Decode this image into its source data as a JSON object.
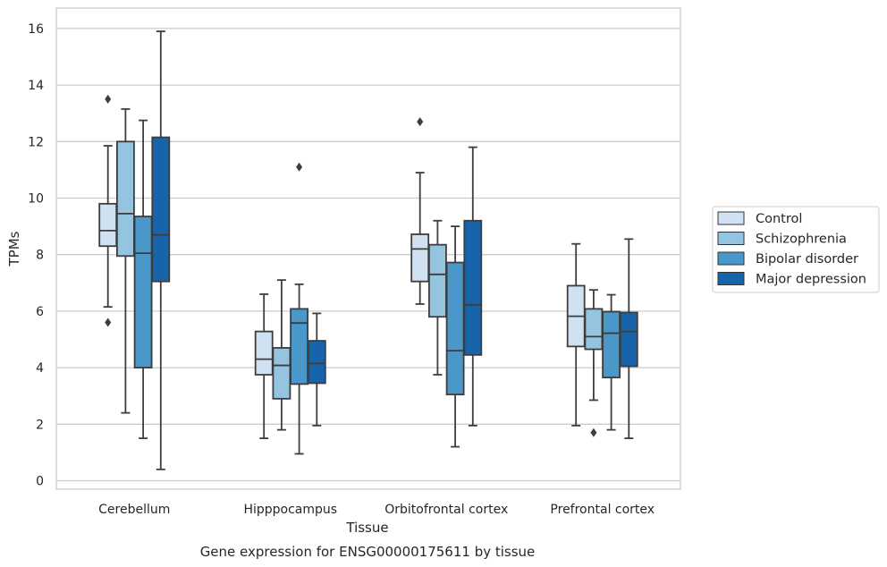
{
  "chart_data": {
    "type": "box",
    "xlabel": "Tissue",
    "ylabel": "TPMs",
    "caption": "Gene expression for ENSG00000175611 by tissue",
    "ylim": [
      -0.2,
      16.7
    ],
    "yticks": [
      0,
      2,
      4,
      6,
      8,
      10,
      12,
      14,
      16
    ],
    "grid": "horizontal",
    "legend_position": "outside-right",
    "categories": [
      "Cerebellum",
      "Hipppocampus",
      "Orbitofrontal cortex",
      "Prefrontal cortex"
    ],
    "series": [
      {
        "name": "Control",
        "color": "#d0e1f2",
        "boxes": [
          {
            "whislo": 6.15,
            "q1": 8.3,
            "med": 8.85,
            "q3": 9.8,
            "whishi": 11.85,
            "fliers": [
              13.5,
              5.6
            ]
          },
          {
            "whislo": 1.5,
            "q1": 3.75,
            "med": 4.3,
            "q3": 5.28,
            "whishi": 6.6,
            "fliers": []
          },
          {
            "whislo": 6.25,
            "q1": 7.05,
            "med": 8.2,
            "q3": 8.72,
            "whishi": 10.9,
            "fliers": [
              12.7
            ]
          },
          {
            "whislo": 1.95,
            "q1": 4.75,
            "med": 5.82,
            "q3": 6.9,
            "whishi": 8.38,
            "fliers": []
          }
        ]
      },
      {
        "name": "Schizophrenia",
        "color": "#94c4df",
        "boxes": [
          {
            "whislo": 2.4,
            "q1": 7.95,
            "med": 9.45,
            "q3": 12.0,
            "whishi": 13.15,
            "fliers": []
          },
          {
            "whislo": 1.8,
            "q1": 2.9,
            "med": 4.08,
            "q3": 4.7,
            "whishi": 7.1,
            "fliers": []
          },
          {
            "whislo": 3.75,
            "q1": 5.8,
            "med": 7.3,
            "q3": 8.35,
            "whishi": 9.2,
            "fliers": []
          },
          {
            "whislo": 2.85,
            "q1": 4.65,
            "med": 5.1,
            "q3": 6.08,
            "whishi": 6.75,
            "fliers": [
              1.7
            ]
          }
        ]
      },
      {
        "name": "Bipolar disorder",
        "color": "#4a98c9",
        "boxes": [
          {
            "whislo": 1.5,
            "q1": 4.0,
            "med": 8.05,
            "q3": 9.35,
            "whishi": 12.75,
            "fliers": []
          },
          {
            "whislo": 0.95,
            "q1": 3.42,
            "med": 5.58,
            "q3": 6.08,
            "whishi": 6.95,
            "fliers": [
              11.1
            ]
          },
          {
            "whislo": 1.2,
            "q1": 3.05,
            "med": 4.6,
            "q3": 7.72,
            "whishi": 9.0,
            "fliers": []
          },
          {
            "whislo": 1.8,
            "q1": 3.65,
            "med": 5.22,
            "q3": 5.98,
            "whishi": 6.58,
            "fliers": []
          }
        ]
      },
      {
        "name": "Major depression",
        "color": "#1764ab",
        "boxes": [
          {
            "whislo": 0.4,
            "q1": 7.05,
            "med": 8.7,
            "q3": 12.15,
            "whishi": 15.9,
            "fliers": []
          },
          {
            "whislo": 1.95,
            "q1": 3.45,
            "med": 4.15,
            "q3": 4.95,
            "whishi": 5.92,
            "fliers": []
          },
          {
            "whislo": 1.95,
            "q1": 4.45,
            "med": 6.22,
            "q3": 9.2,
            "whishi": 11.8,
            "fliers": []
          },
          {
            "whislo": 1.5,
            "q1": 4.05,
            "med": 5.28,
            "q3": 5.95,
            "whishi": 8.55,
            "fliers": []
          }
        ]
      }
    ]
  }
}
